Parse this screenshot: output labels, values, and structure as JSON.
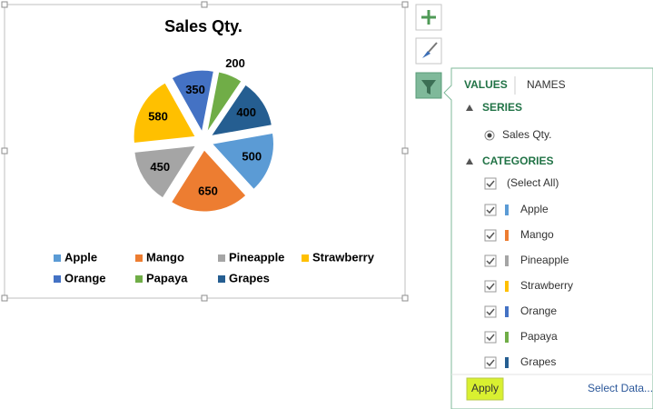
{
  "chart_data": {
    "type": "pie",
    "title": "Sales Qty.",
    "categories": [
      "Apple",
      "Mango",
      "Pineapple",
      "Strawberry",
      "Orange",
      "Papaya",
      "Grapes"
    ],
    "values": [
      500,
      650,
      450,
      580,
      350,
      200,
      400
    ],
    "colors": [
      "#5b9bd5",
      "#ed7d31",
      "#a5a5a5",
      "#ffc000",
      "#4472c4",
      "#70ad47",
      "#255e91"
    ],
    "legend": "bottom",
    "exploded": true
  },
  "filter_pane": {
    "tabs": [
      "VALUES",
      "NAMES"
    ],
    "series_header": "SERIES",
    "categories_header": "CATEGORIES",
    "select_all": "(Select All)",
    "apply": "Apply",
    "select_data": "Select Data..."
  }
}
